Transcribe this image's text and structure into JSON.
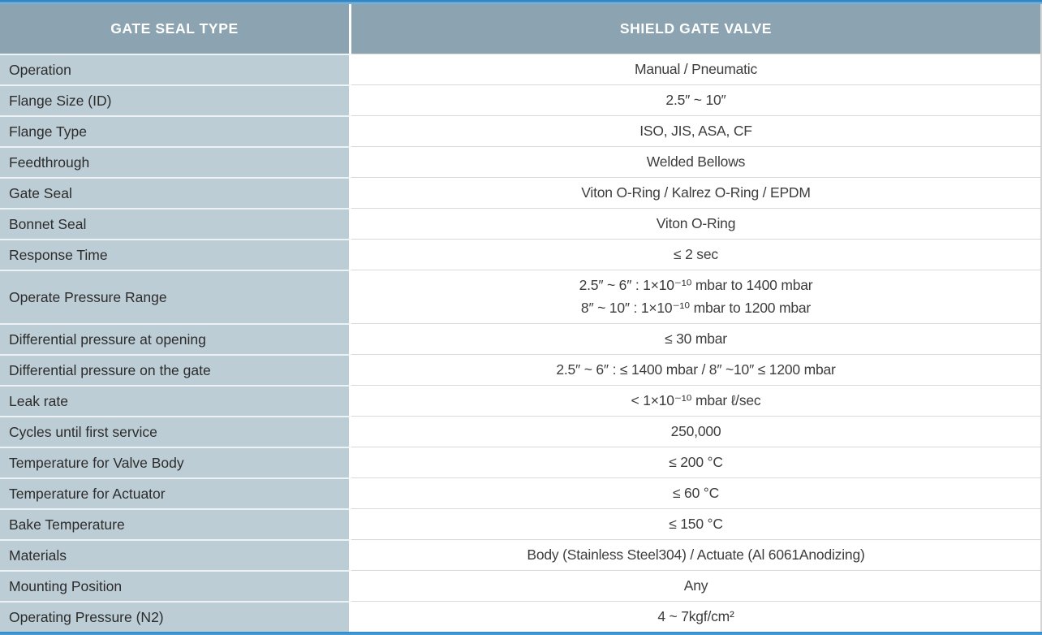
{
  "table": {
    "header": {
      "col1": "GATE SEAL TYPE",
      "col2": "SHIELD GATE VALVE"
    },
    "rows": [
      {
        "label": "Operation",
        "value": "Manual / Pneumatic"
      },
      {
        "label": "Flange Size (ID)",
        "value": "2.5″ ~ 10″"
      },
      {
        "label": "Flange Type",
        "value": "ISO, JIS, ASA, CF"
      },
      {
        "label": "Feedthrough",
        "value": "Welded Bellows"
      },
      {
        "label": "Gate Seal",
        "value": "Viton O-Ring / Kalrez O-Ring / EPDM"
      },
      {
        "label": "Bonnet Seal",
        "value": "Viton O-Ring"
      },
      {
        "label": "Response Time",
        "value": "≤ 2 sec"
      },
      {
        "label": "Operate Pressure Range",
        "value_lines": [
          "2.5″ ~ 6″ : 1×10⁻¹⁰ mbar to 1400 mbar",
          "8″ ~ 10″ : 1×10⁻¹⁰ mbar to 1200 mbar"
        ]
      },
      {
        "label": "Differential pressure at opening",
        "value": "≤ 30 mbar"
      },
      {
        "label": "Differential pressure on the gate",
        "value": "2.5″ ~ 6″ : ≤ 1400 mbar / 8″ ~10″ ≤ 1200 mbar"
      },
      {
        "label": "Leak rate",
        "value": "< 1×10⁻¹⁰ mbar ℓ/sec"
      },
      {
        "label": "Cycles until first service",
        "value": "250,000"
      },
      {
        "label": "Temperature for Valve Body",
        "value": "≤ 200 °C"
      },
      {
        "label": "Temperature for Actuator",
        "value": "≤ 60 °C"
      },
      {
        "label": "Bake Temperature",
        "value": "≤ 150 °C"
      },
      {
        "label": "Materials",
        "value": "Body (Stainless Steel304) / Actuate (Al 6061Anodizing)"
      },
      {
        "label": "Mounting Position",
        "value": "Any"
      },
      {
        "label": "Operating Pressure (N2)",
        "value": "4 ~ 7kgf/cm²"
      }
    ],
    "colors": {
      "header_bg": "#8ca4b2",
      "label_bg": "#bdcdd5",
      "accent_top_dark": "#3484c2",
      "accent_top_light": "#6fb4de",
      "accent_bottom": "#2d89cb",
      "row_divider": "#d9d9d9",
      "header_text": "#ffffff",
      "label_text": "#2c2c2c",
      "value_text": "#3d3d3d"
    }
  }
}
